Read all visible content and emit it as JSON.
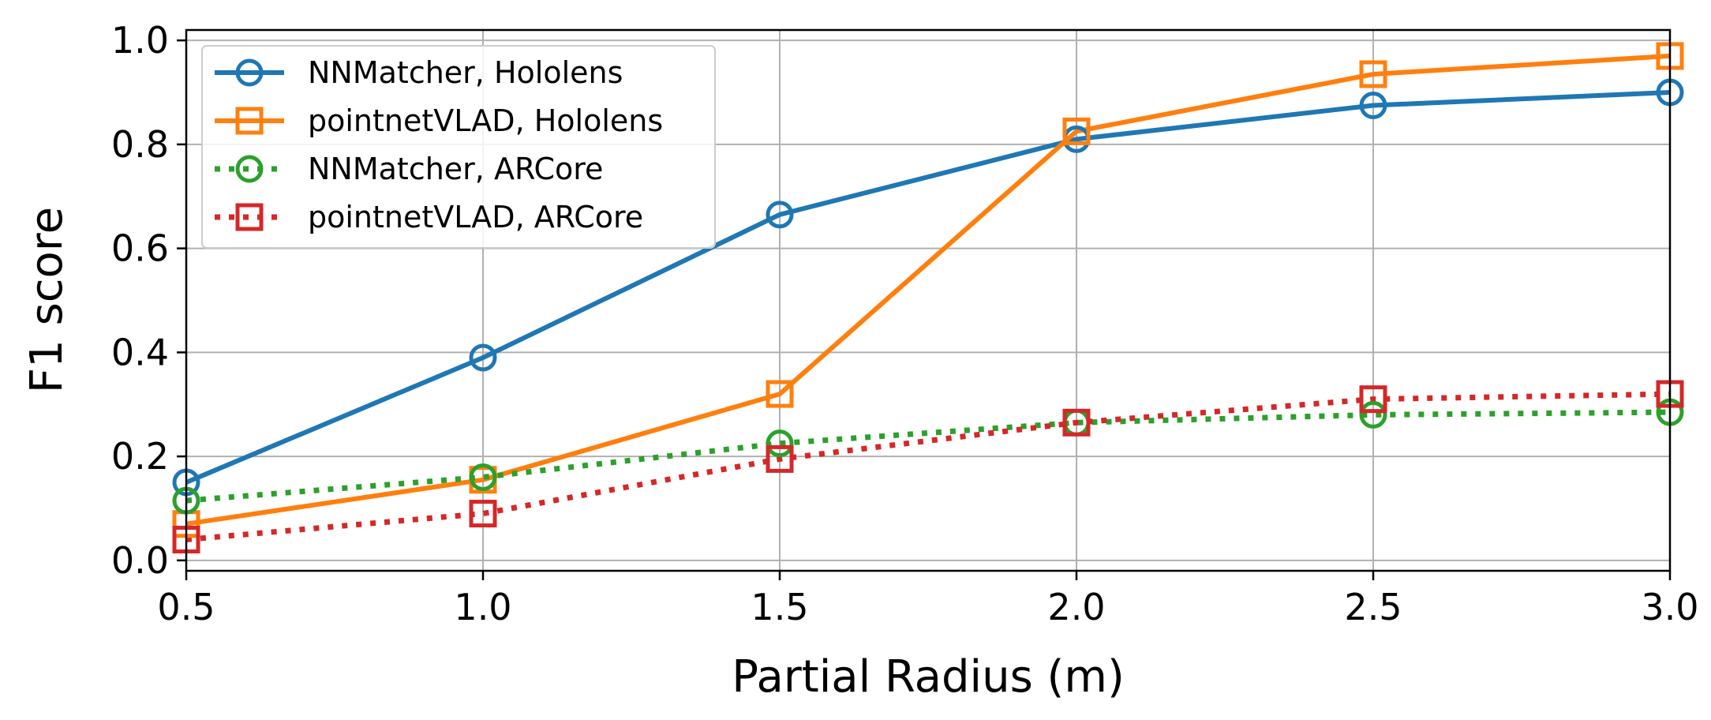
{
  "chart_data": {
    "type": "line",
    "xlabel": "Partial Radius (m)",
    "ylabel": "F1 score",
    "xlim": [
      0.5,
      3.0
    ],
    "ylim": [
      -0.02,
      1.02
    ],
    "xticks": [
      "0.5",
      "1.0",
      "1.5",
      "2.0",
      "2.5",
      "3.0"
    ],
    "yticks": [
      "0.0",
      "0.2",
      "0.4",
      "0.6",
      "0.8",
      "1.0"
    ],
    "grid": true,
    "legend_position": "top-left",
    "x": [
      0.5,
      1.0,
      1.5,
      2.0,
      2.5,
      3.0
    ],
    "series": [
      {
        "name": "NNMatcher, Hololens",
        "values": [
          0.15,
          0.39,
          0.665,
          0.81,
          0.875,
          0.9
        ],
        "color": "#1f77b4",
        "marker": "circle",
        "linestyle": "solid"
      },
      {
        "name": "pointnetVLAD, Hololens",
        "values": [
          0.07,
          0.155,
          0.32,
          0.825,
          0.935,
          0.97
        ],
        "color": "#ff7f0e",
        "marker": "square",
        "linestyle": "solid"
      },
      {
        "name": "NNMatcher, ARCore",
        "values": [
          0.115,
          0.16,
          0.225,
          0.265,
          0.28,
          0.285
        ],
        "color": "#2ca02c",
        "marker": "circle",
        "linestyle": "dotted"
      },
      {
        "name": "pointnetVLAD, ARCore",
        "values": [
          0.04,
          0.09,
          0.195,
          0.265,
          0.31,
          0.32
        ],
        "color": "#d62728",
        "marker": "square",
        "linestyle": "dotted"
      }
    ]
  }
}
